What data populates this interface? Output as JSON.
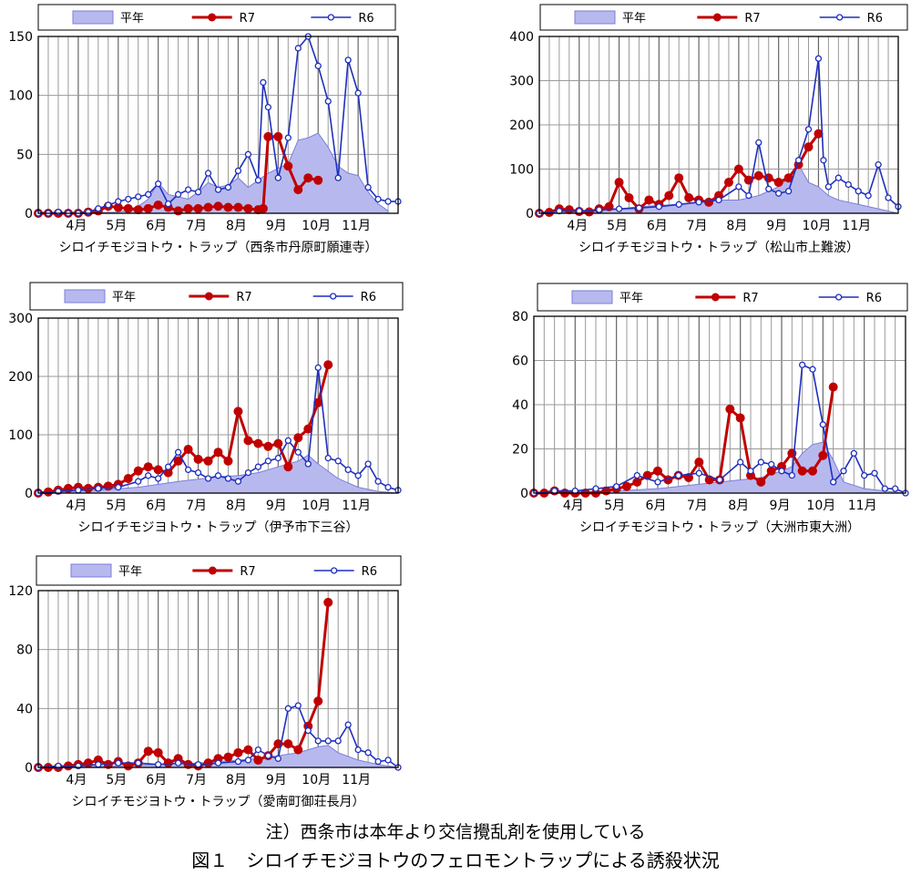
{
  "note": "注）西条市は本年より交信攪乱剤を使用している",
  "figure_title": "図１　シロイチモジヨトウのフェロモントラップによる誘殺状況",
  "colors": {
    "normal_fill": "#b7b9ee",
    "normal_stroke": "#7b7fd9",
    "r7": "#c00000",
    "r6": "#1f2fbf",
    "grid": "#9a9a9a",
    "frame": "#000000"
  },
  "chart_data": [
    {
      "type": "line",
      "title": "シロイチモジヨトウ・トラップ（西条市丹原町願連寺）",
      "x_tick_labels": [
        "4月",
        "5月",
        "6月",
        "7月",
        "8月",
        "9月",
        "10月",
        "11月"
      ],
      "xlim": [
        0,
        36
      ],
      "ylim": [
        0,
        150
      ],
      "y_ticks": [
        0,
        50,
        100,
        150
      ],
      "legend": {
        "position": "top",
        "labels": [
          "平年",
          "R7",
          "R6"
        ]
      },
      "grid": true,
      "series": [
        {
          "name": "平年",
          "kind": "area",
          "x": [
            0,
            4,
            8,
            9,
            10,
            11,
            12,
            13,
            14,
            15,
            16,
            17,
            18,
            19,
            20,
            21,
            22,
            23,
            24,
            25,
            26,
            27,
            28,
            29,
            30,
            31,
            32,
            33,
            34,
            35
          ],
          "values": [
            0,
            0,
            1,
            3,
            6,
            12,
            26,
            16,
            14,
            12,
            18,
            26,
            22,
            24,
            30,
            22,
            28,
            34,
            38,
            42,
            62,
            64,
            68,
            56,
            40,
            34,
            32,
            18,
            8,
            2
          ]
        },
        {
          "name": "R7",
          "kind": "line",
          "x": [
            0,
            1,
            2,
            3,
            4,
            5,
            6,
            7,
            8,
            9,
            10,
            11,
            12,
            13,
            14,
            15,
            16,
            17,
            18,
            19,
            20,
            21,
            22,
            22.5,
            23,
            24,
            25,
            26,
            27,
            28
          ],
          "values": [
            0,
            0,
            0,
            0,
            0,
            1,
            2,
            6,
            5,
            4,
            3,
            4,
            7,
            5,
            2,
            4,
            4,
            5,
            6,
            5,
            5,
            4,
            3,
            4,
            65,
            65,
            40,
            20,
            30,
            28
          ]
        },
        {
          "name": "R6",
          "kind": "line",
          "x": [
            0,
            1,
            2,
            3,
            4,
            5,
            6,
            7,
            8,
            9,
            10,
            11,
            12,
            13,
            14,
            15,
            16,
            17,
            18,
            19,
            20,
            21,
            22,
            22.5,
            23,
            24,
            25,
            26,
            27,
            28,
            29,
            30,
            31,
            32,
            33,
            34,
            35,
            36
          ],
          "values": [
            0,
            0,
            1,
            0,
            0,
            1,
            4,
            7,
            10,
            12,
            14,
            16,
            25,
            8,
            16,
            20,
            18,
            34,
            20,
            22,
            36,
            50,
            28,
            111,
            90,
            30,
            64,
            140,
            155,
            125,
            95,
            30,
            130,
            102,
            22,
            12,
            10,
            10
          ]
        }
      ]
    },
    {
      "type": "line",
      "title": "シロイチモジヨトウ・トラップ（松山市上難波）",
      "x_tick_labels": [
        "4月",
        "5月",
        "6月",
        "7月",
        "8月",
        "9月",
        "10月",
        "11月"
      ],
      "xlim": [
        0,
        36
      ],
      "ylim": [
        0,
        400
      ],
      "y_ticks": [
        0,
        100,
        200,
        300,
        400
      ],
      "legend": {
        "position": "top",
        "labels": [
          "平年",
          "R7",
          "R6"
        ]
      },
      "grid": true,
      "series": [
        {
          "name": "平年",
          "kind": "area",
          "x": [
            0,
            6,
            10,
            14,
            16,
            18,
            20,
            22,
            23,
            24,
            25,
            26,
            27,
            28,
            29,
            30,
            32,
            34,
            36
          ],
          "values": [
            0,
            5,
            15,
            20,
            25,
            30,
            30,
            40,
            50,
            60,
            80,
            110,
            70,
            60,
            40,
            30,
            20,
            10,
            0
          ]
        },
        {
          "name": "R7",
          "kind": "line",
          "x": [
            0,
            1,
            2,
            3,
            4,
            5,
            6,
            7,
            8,
            9,
            10,
            11,
            12,
            13,
            14,
            15,
            16,
            17,
            18,
            19,
            20,
            21,
            22,
            23,
            24,
            25,
            26,
            27,
            28
          ],
          "values": [
            0,
            2,
            10,
            8,
            4,
            3,
            10,
            15,
            70,
            35,
            10,
            30,
            20,
            40,
            80,
            35,
            30,
            25,
            40,
            70,
            100,
            75,
            85,
            80,
            70,
            80,
            110,
            150,
            180
          ]
        },
        {
          "name": "R6",
          "kind": "line",
          "x": [
            0,
            2,
            4,
            6,
            8,
            10,
            12,
            14,
            16,
            18,
            20,
            21,
            22,
            23,
            24,
            25,
            26,
            27,
            28,
            28.5,
            29,
            30,
            31,
            32,
            33,
            34,
            35,
            36
          ],
          "values": [
            0,
            5,
            5,
            8,
            10,
            12,
            15,
            20,
            25,
            30,
            60,
            40,
            160,
            55,
            45,
            50,
            120,
            190,
            350,
            120,
            60,
            80,
            65,
            50,
            40,
            110,
            35,
            15
          ]
        }
      ]
    },
    {
      "type": "line",
      "title": "シロイチモジヨトウ・トラップ（伊予市下三谷）",
      "x_tick_labels": [
        "4月",
        "5月",
        "6月",
        "7月",
        "8月",
        "9月",
        "10月",
        "11月"
      ],
      "xlim": [
        0,
        36
      ],
      "ylim": [
        0,
        300
      ],
      "y_ticks": [
        0,
        100,
        200,
        300
      ],
      "legend": {
        "position": "top",
        "labels": [
          "平年",
          "R7",
          "R6"
        ]
      },
      "grid": true,
      "series": [
        {
          "name": "平年",
          "kind": "area",
          "x": [
            0,
            6,
            10,
            14,
            18,
            20,
            22,
            24,
            26,
            27,
            28,
            30,
            32,
            34,
            36
          ],
          "values": [
            0,
            5,
            10,
            20,
            28,
            30,
            35,
            45,
            55,
            65,
            50,
            25,
            10,
            3,
            0
          ]
        },
        {
          "name": "R7",
          "kind": "line",
          "x": [
            0,
            1,
            2,
            3,
            4,
            5,
            6,
            7,
            8,
            9,
            10,
            11,
            12,
            13,
            14,
            15,
            16,
            17,
            18,
            19,
            20,
            21,
            22,
            23,
            24,
            25,
            26,
            27,
            28,
            29
          ],
          "values": [
            0,
            2,
            5,
            8,
            10,
            8,
            10,
            12,
            15,
            25,
            38,
            45,
            40,
            35,
            55,
            75,
            58,
            55,
            70,
            55,
            140,
            90,
            85,
            80,
            85,
            45,
            95,
            110,
            155,
            220
          ]
        },
        {
          "name": "R6",
          "kind": "line",
          "x": [
            0,
            2,
            4,
            6,
            8,
            10,
            11,
            12,
            13,
            14,
            15,
            16,
            17,
            18,
            19,
            20,
            21,
            22,
            23,
            24,
            25,
            26,
            27,
            28,
            29,
            30,
            31,
            32,
            33,
            34,
            35,
            36
          ],
          "values": [
            0,
            3,
            5,
            8,
            10,
            20,
            30,
            25,
            45,
            70,
            40,
            35,
            25,
            30,
            25,
            20,
            35,
            45,
            55,
            60,
            90,
            70,
            50,
            215,
            60,
            55,
            40,
            30,
            50,
            20,
            10,
            5
          ]
        }
      ]
    },
    {
      "type": "line",
      "title": "シロイチモジヨトウ・トラップ（大洲市東大洲）",
      "x_tick_labels": [
        "4月",
        "5月",
        "6月",
        "7月",
        "8月",
        "9月",
        "10月",
        "11月"
      ],
      "xlim": [
        0,
        36
      ],
      "ylim": [
        0,
        80
      ],
      "y_ticks": [
        0,
        20,
        40,
        60,
        80
      ],
      "legend": {
        "position": "top",
        "labels": [
          "平年",
          "R7",
          "R6"
        ]
      },
      "grid": true,
      "series": [
        {
          "name": "平年",
          "kind": "area",
          "x": [
            0,
            8,
            12,
            14,
            16,
            18,
            20,
            22,
            24,
            25,
            26,
            27,
            28,
            29,
            30,
            32,
            34,
            36
          ],
          "values": [
            0,
            1,
            2,
            3,
            4,
            5,
            6,
            7,
            10,
            12,
            18,
            22,
            23,
            15,
            5,
            2,
            1,
            0
          ]
        },
        {
          "name": "R7",
          "kind": "line",
          "x": [
            0,
            1,
            2,
            3,
            4,
            5,
            6,
            7,
            8,
            9,
            10,
            11,
            12,
            13,
            14,
            15,
            16,
            17,
            18,
            19,
            20,
            21,
            22,
            23,
            24,
            25,
            26,
            27,
            28,
            29
          ],
          "values": [
            0,
            0,
            1,
            0,
            0,
            0,
            0,
            1,
            2,
            3,
            5,
            8,
            10,
            6,
            8,
            7,
            14,
            6,
            6,
            38,
            34,
            8,
            5,
            10,
            12,
            18,
            10,
            10,
            17,
            48
          ]
        },
        {
          "name": "R6",
          "kind": "line",
          "x": [
            0,
            2,
            4,
            6,
            8,
            10,
            12,
            14,
            16,
            18,
            20,
            21,
            22,
            23,
            24,
            25,
            26,
            27,
            28,
            29,
            30,
            31,
            32,
            33,
            34,
            35,
            36
          ],
          "values": [
            0,
            1,
            1,
            2,
            3,
            8,
            5,
            8,
            9,
            6,
            14,
            10,
            14,
            13,
            10,
            8,
            58,
            56,
            31,
            5,
            10,
            18,
            8,
            9,
            2,
            2,
            0
          ]
        }
      ]
    },
    {
      "type": "line",
      "title": "シロイチモジヨトウ・トラップ（愛南町御荘長月）",
      "x_tick_labels": [
        "4月",
        "5月",
        "6月",
        "7月",
        "8月",
        "9月",
        "10月",
        "11月"
      ],
      "xlim": [
        0,
        36
      ],
      "ylim": [
        0,
        120
      ],
      "y_ticks": [
        0,
        40,
        80,
        120
      ],
      "legend": {
        "position": "top",
        "labels": [
          "平年",
          "R7",
          "R6"
        ]
      },
      "grid": true,
      "series": [
        {
          "name": "平年",
          "kind": "area",
          "x": [
            0,
            8,
            12,
            16,
            18,
            20,
            22,
            24,
            26,
            27,
            28,
            29,
            30,
            32,
            34,
            36
          ],
          "values": [
            0,
            1,
            2,
            3,
            4,
            5,
            6,
            8,
            10,
            12,
            14,
            15,
            10,
            5,
            2,
            0
          ]
        },
        {
          "name": "R7",
          "kind": "line",
          "x": [
            0,
            1,
            2,
            3,
            4,
            5,
            6,
            7,
            8,
            9,
            10,
            11,
            12,
            13,
            14,
            15,
            16,
            17,
            18,
            19,
            20,
            21,
            22,
            23,
            24,
            25,
            26,
            27,
            28,
            29
          ],
          "values": [
            0,
            0,
            0,
            1,
            2,
            3,
            5,
            2,
            4,
            1,
            3,
            11,
            10,
            3,
            6,
            2,
            1,
            3,
            6,
            7,
            10,
            12,
            5,
            8,
            16,
            16,
            12,
            28,
            45,
            112
          ]
        },
        {
          "name": "R6",
          "kind": "line",
          "x": [
            0,
            2,
            4,
            6,
            8,
            10,
            12,
            14,
            16,
            18,
            20,
            21,
            22,
            23,
            24,
            25,
            26,
            27,
            28,
            29,
            30,
            31,
            32,
            33,
            34,
            35,
            36
          ],
          "values": [
            0,
            1,
            1,
            2,
            3,
            3,
            2,
            3,
            2,
            3,
            4,
            5,
            12,
            8,
            6,
            40,
            42,
            25,
            18,
            18,
            18,
            29,
            12,
            10,
            4,
            5,
            0
          ]
        }
      ]
    }
  ]
}
